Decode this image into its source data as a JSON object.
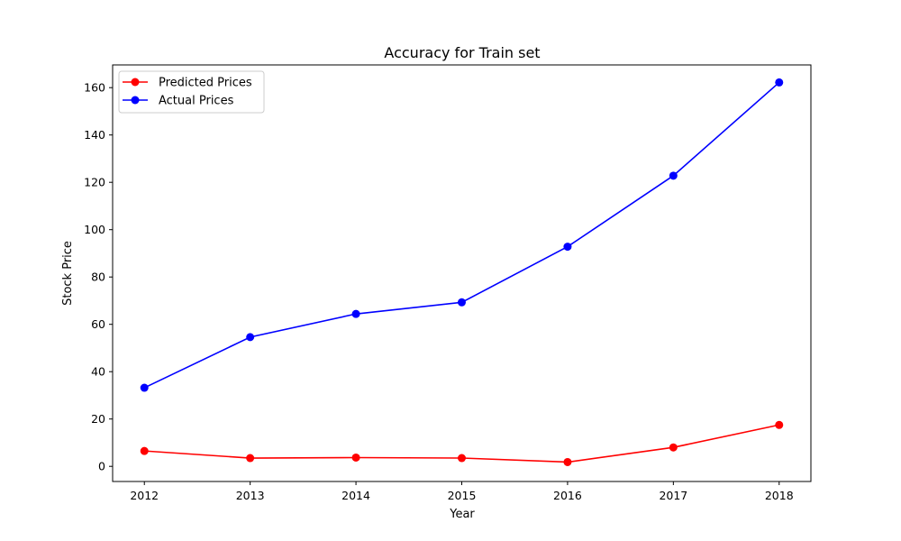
{
  "chart_data": {
    "type": "line",
    "title": "Accuracy for Train set",
    "xlabel": "Year",
    "ylabel": "Stock Price",
    "x": [
      2012,
      2013,
      2014,
      2015,
      2016,
      2017,
      2018
    ],
    "xlim": [
      2011.7,
      2018.3
    ],
    "ylim": [
      -6.4,
      169.6
    ],
    "yticks": [
      0,
      20,
      40,
      60,
      80,
      100,
      120,
      140,
      160
    ],
    "grid": false,
    "legend_position": "top-left",
    "series": [
      {
        "name": "Predicted Prices",
        "color": "#ff0000",
        "marker": "circle",
        "values": [
          6.5,
          3.5,
          3.7,
          3.5,
          1.8,
          8.0,
          17.5
        ]
      },
      {
        "name": "Actual Prices",
        "color": "#0000ff",
        "marker": "circle",
        "values": [
          33.2,
          54.6,
          64.4,
          69.3,
          92.8,
          122.8,
          162.2
        ]
      }
    ]
  }
}
